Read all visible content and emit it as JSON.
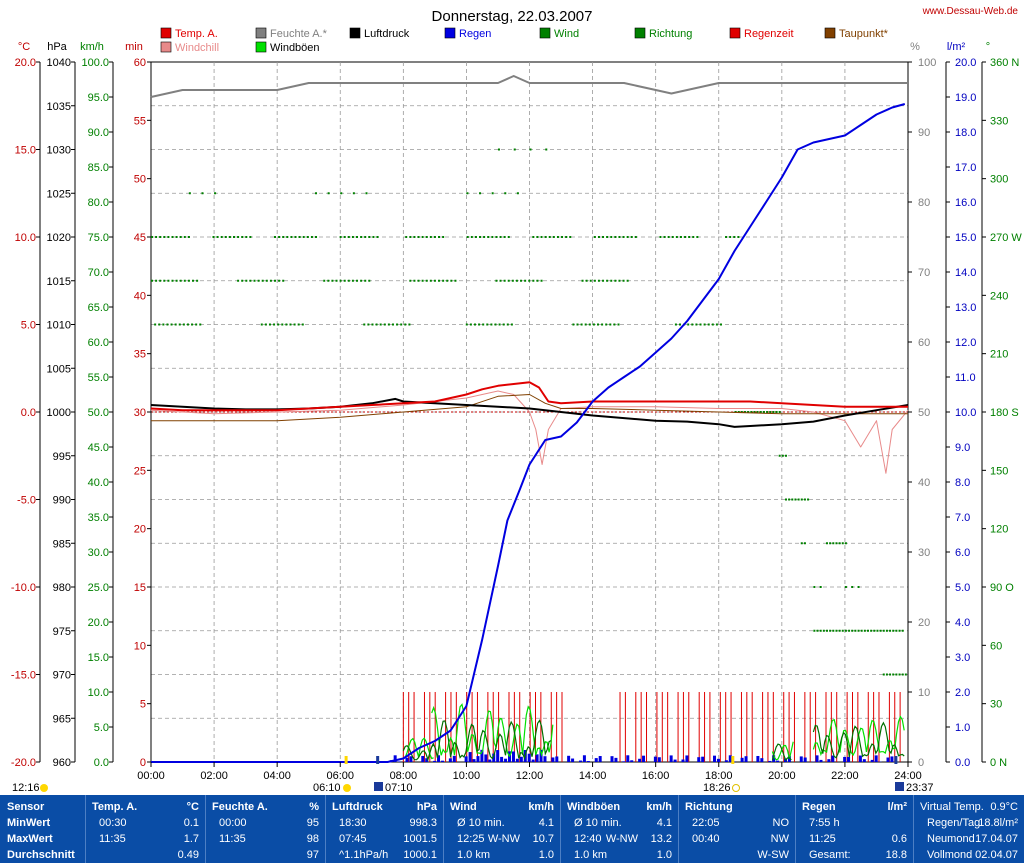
{
  "title": "Donnerstag, 22.03.2007",
  "website": "www.Dessau-Web.de",
  "legend": [
    {
      "label": "Temp. A.",
      "color": "#e00000"
    },
    {
      "label": "Windchill",
      "color": "#e88a8a"
    },
    {
      "label": "Feuchte A.*",
      "color": "#808080"
    },
    {
      "label": "Windböen",
      "color": "#00e000"
    },
    {
      "label": "Luftdruck",
      "color": "#000000"
    },
    {
      "label": "Regen",
      "color": "#0000e0"
    },
    {
      "label": "Wind",
      "color": "#008000"
    },
    {
      "label": "Richtung",
      "color": "#008000"
    },
    {
      "label": "Regenzeit",
      "color": "#e00000"
    },
    {
      "label": "Taupunkt*",
      "color": "#804000"
    }
  ],
  "axes": {
    "temp": {
      "unit": "°C",
      "ticks": [
        "20.0",
        "15.0",
        "10.0",
        "5.0",
        "0.0",
        "-5.0",
        "-10.0",
        "-15.0",
        "-20.0"
      ]
    },
    "pressure": {
      "unit": "hPa",
      "ticks": [
        "1040",
        "1035",
        "1030",
        "1025",
        "1020",
        "1015",
        "1010",
        "1005",
        "1000",
        "995",
        "990",
        "985",
        "980",
        "975",
        "970",
        "965",
        "960"
      ]
    },
    "wind": {
      "unit": "km/h",
      "ticks": [
        "100.0",
        "95.0",
        "90.0",
        "85.0",
        "80.0",
        "75.0",
        "70.0",
        "65.0",
        "60.0",
        "55.0",
        "50.0",
        "45.0",
        "40.0",
        "35.0",
        "30.0",
        "25.0",
        "20.0",
        "15.0",
        "10.0",
        "5.0",
        "0.0"
      ]
    },
    "minutes": {
      "unit": "min",
      "ticks": [
        "60",
        "55",
        "50",
        "45",
        "40",
        "35",
        "30",
        "25",
        "20",
        "15",
        "10",
        "5",
        "0"
      ]
    },
    "humidity": {
      "unit": "%",
      "ticks": [
        "100",
        "90",
        "80",
        "70",
        "60",
        "50",
        "40",
        "30",
        "20",
        "10",
        "0"
      ]
    },
    "rain": {
      "unit": "l/m²",
      "ticks": [
        "20.0",
        "19.0",
        "18.0",
        "17.0",
        "16.0",
        "15.0",
        "14.0",
        "13.0",
        "12.0",
        "11.0",
        "10.0",
        "9.0",
        "8.0",
        "7.0",
        "6.0",
        "5.0",
        "4.0",
        "3.0",
        "2.0",
        "1.0",
        "0.0"
      ]
    },
    "direction": {
      "unit": "°",
      "ticks": [
        "360 N",
        "330",
        "300",
        "270 W",
        "240",
        "210",
        "180 S",
        "150",
        "120",
        "90 O",
        "60",
        "30",
        "0 N"
      ]
    },
    "time": {
      "ticks": [
        "00:00",
        "02:00",
        "04:00",
        "06:00",
        "08:00",
        "10:00",
        "12:00",
        "14:00",
        "16:00",
        "18:00",
        "20:00",
        "22:00",
        "24:00"
      ]
    }
  },
  "sun_moon": {
    "moonset": "12:16",
    "sunrise": "06:10",
    "moonrise": "07:10",
    "sunset": "18:26",
    "moon2": "23:37"
  },
  "chart_data": {
    "type": "line",
    "x_unit": "hours",
    "xlim": [
      0,
      24
    ],
    "series": [
      {
        "name": "Temp. A.",
        "unit": "°C",
        "color": "#e00000",
        "x": [
          0,
          1,
          2,
          3,
          4,
          5,
          6,
          7,
          8,
          9,
          10,
          10.5,
          11,
          11.5,
          12,
          12.3,
          12.6,
          13,
          14,
          15,
          16,
          17,
          18,
          19,
          20,
          21,
          22,
          23,
          24
        ],
        "y": [
          0.2,
          0.1,
          0.1,
          0.1,
          0.1,
          0.2,
          0.3,
          0.4,
          0.5,
          0.6,
          1.0,
          1.3,
          1.5,
          1.6,
          1.7,
          1.4,
          0.6,
          0.5,
          0.6,
          0.6,
          0.6,
          0.6,
          0.6,
          0.6,
          0.5,
          0.4,
          0.3,
          0.3,
          0.3
        ]
      },
      {
        "name": "Windchill",
        "unit": "°C",
        "color": "#e88a8a",
        "x": [
          0,
          2,
          4,
          6,
          8,
          10,
          11,
          11.5,
          12,
          12.2,
          12.4,
          12.6,
          13,
          14,
          16,
          18,
          20,
          21,
          22,
          22.5,
          23,
          23.3,
          23.5,
          24
        ],
        "y": [
          0.1,
          -0.1,
          0,
          0.1,
          0.4,
          0.8,
          1.2,
          1.0,
          0,
          -1,
          -3,
          -1,
          0.2,
          0.3,
          0.3,
          0.2,
          0.2,
          0,
          -0.5,
          -2,
          -0.5,
          -3.5,
          -1,
          0.1
        ]
      },
      {
        "name": "Feuchte A.*",
        "unit": "%",
        "color": "#808080",
        "x": [
          0,
          0.5,
          1,
          2,
          3,
          4,
          5,
          6,
          7,
          8,
          9,
          10,
          11,
          11.5,
          12,
          13,
          14,
          15,
          16,
          16.5,
          17,
          18,
          19,
          20,
          21,
          22,
          23,
          24
        ],
        "y": [
          95,
          95.5,
          96,
          96,
          96,
          96,
          97,
          97,
          97,
          97,
          97,
          97,
          97,
          98,
          97,
          97,
          97,
          97,
          96,
          95.5,
          96,
          97,
          97,
          97,
          97,
          97,
          97,
          97
        ]
      },
      {
        "name": "Luftdruck",
        "unit": "hPa",
        "color": "#000000",
        "x": [
          0,
          1,
          2,
          3,
          4,
          5,
          6,
          7,
          7.75,
          8,
          9,
          10,
          11,
          12,
          13,
          14,
          15,
          16,
          17,
          18,
          18.5,
          19,
          20,
          21,
          22,
          23,
          24
        ],
        "y": [
          1000.8,
          1000.6,
          1000.4,
          1000.3,
          1000.3,
          1000.4,
          1000.6,
          1001.0,
          1001.5,
          1001.2,
          1001.0,
          1000.8,
          1000.6,
          1000.4,
          1000.0,
          999.6,
          999.3,
          999.0,
          998.9,
          998.6,
          998.3,
          998.4,
          998.6,
          998.9,
          999.6,
          1000.2,
          1000.8
        ]
      },
      {
        "name": "Regen",
        "unit": "l/m²",
        "color": "#0000e0",
        "x": [
          0,
          7.5,
          8,
          8.5,
          9,
          9.5,
          10,
          10.5,
          11,
          11.3,
          11.7,
          12,
          12.5,
          13,
          13.5,
          14,
          14.5,
          15,
          15.5,
          16,
          16.5,
          17,
          17.5,
          18,
          18.5,
          19,
          19.5,
          20,
          20.5,
          21,
          22,
          22.5,
          23,
          23.5,
          23.9
        ],
        "y": [
          0,
          0,
          0.1,
          0.4,
          0.6,
          0.9,
          1.6,
          3.5,
          5.6,
          6.9,
          7.8,
          8.5,
          9.2,
          9.3,
          9.7,
          10.3,
          10.7,
          11.0,
          11.3,
          11.7,
          12.1,
          12.6,
          13.2,
          13.8,
          14.6,
          15.3,
          16.0,
          16.7,
          17.5,
          17.7,
          17.9,
          18.2,
          18.5,
          18.7,
          18.8
        ]
      },
      {
        "name": "Taupunkt*",
        "unit": "°C",
        "color": "#804000",
        "x": [
          0,
          2,
          4,
          6,
          8,
          10,
          11,
          12,
          12.5,
          13,
          14,
          16,
          18,
          20,
          22,
          24
        ],
        "y": [
          -0.5,
          -0.5,
          -0.5,
          -0.3,
          0,
          0.3,
          0.9,
          1.0,
          0.5,
          0.2,
          0.2,
          0.1,
          0,
          -0.1,
          -0.1,
          -0.1
        ]
      }
    ]
  },
  "stats": {
    "cols": [
      {
        "name": "Sensor",
        "unit": "",
        "rows": [
          [
            "MinWert",
            "",
            ""
          ],
          [
            "MaxWert",
            "",
            ""
          ],
          [
            "Durchschnitt",
            "",
            ""
          ]
        ]
      },
      {
        "name": "Temp. A.",
        "unit": "°C",
        "rows": [
          [
            "00:30",
            "",
            "0.1"
          ],
          [
            "11:35",
            "",
            "1.7"
          ],
          [
            "",
            "",
            "0.49"
          ]
        ]
      },
      {
        "name": "Feuchte A.",
        "unit": "%",
        "rows": [
          [
            "00:00",
            "",
            "95"
          ],
          [
            "11:35",
            "",
            "98"
          ],
          [
            "",
            "",
            "97"
          ]
        ]
      },
      {
        "name": "Luftdruck",
        "unit": "hPa",
        "rows": [
          [
            "18:30",
            "",
            "998.3"
          ],
          [
            "07:45",
            "",
            "1001.5"
          ],
          [
            "^1.1hPa/h",
            "",
            "1000.1"
          ]
        ]
      },
      {
        "name": "Wind",
        "unit": "km/h",
        "rows": [
          [
            "Ø 10 min.",
            "",
            "4.1"
          ],
          [
            "12:25",
            "W-NW",
            "10.7"
          ],
          [
            "1.0 km",
            "",
            "1.0"
          ]
        ]
      },
      {
        "name": "Windböen",
        "unit": "km/h",
        "rows": [
          [
            "Ø 10 min.",
            "",
            "4.1"
          ],
          [
            "12:40",
            "W-NW",
            "13.2"
          ],
          [
            "1.0 km",
            "",
            "1.0"
          ]
        ]
      },
      {
        "name": "Richtung",
        "unit": "",
        "rows": [
          [
            "22:05",
            "",
            "NO"
          ],
          [
            "00:40",
            "",
            "NW"
          ],
          [
            "",
            "",
            "W-SW"
          ]
        ]
      },
      {
        "name": "Regen",
        "unit": "l/m²",
        "rows": [
          [
            "7:55 h",
            "",
            ""
          ],
          [
            "11:25",
            "",
            "0.6"
          ],
          [
            "Gesamt:",
            "",
            "18.8"
          ]
        ]
      },
      {
        "name": "Virtual Temp.",
        "unit": "0.9°C",
        "rows": [
          [
            "Regen/Tag",
            "",
            "18.8l/m²"
          ],
          [
            "Neumond",
            "",
            "17.04.07"
          ],
          [
            "Vollmond",
            "",
            "02.04.07"
          ]
        ]
      }
    ]
  }
}
